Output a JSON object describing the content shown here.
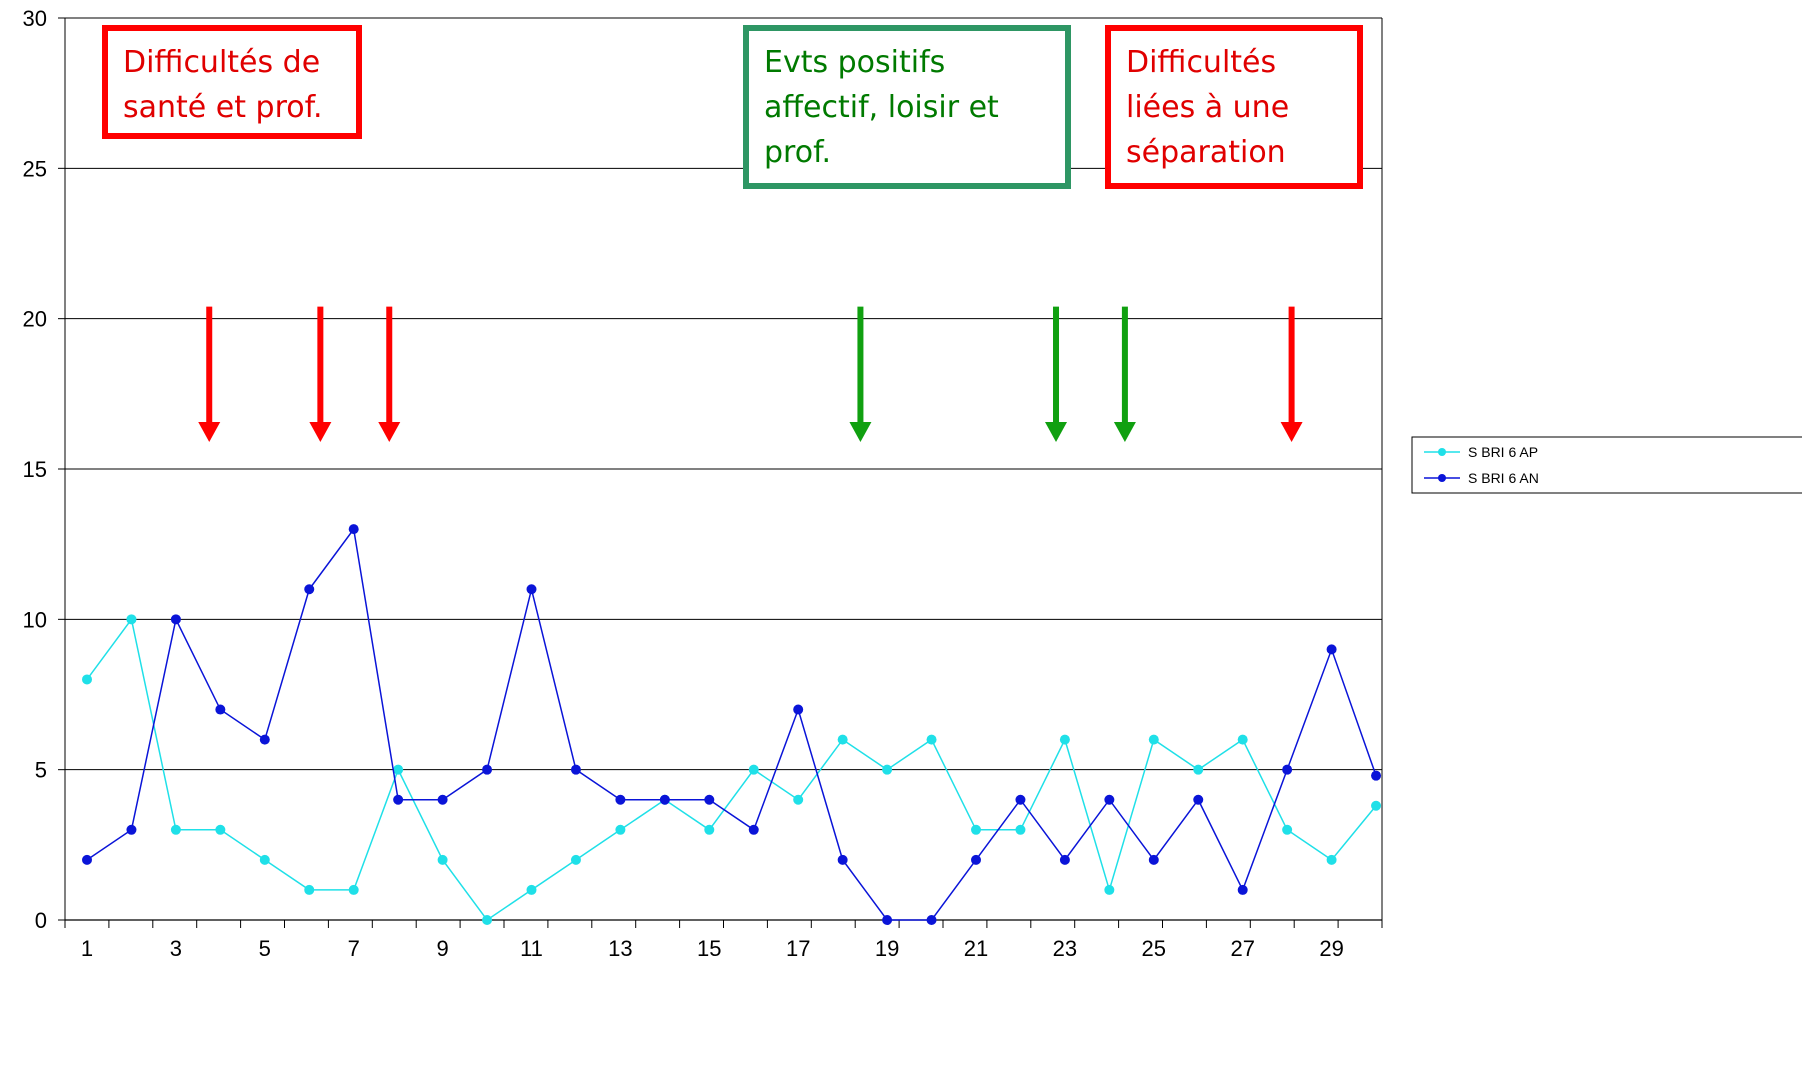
{
  "chart_data": {
    "type": "line",
    "title": "",
    "xlabel": "",
    "ylabel": "",
    "ylim": [
      0,
      30
    ],
    "yticks": [
      0,
      5,
      10,
      15,
      20,
      25,
      30
    ],
    "x": [
      1,
      2,
      3,
      4,
      5,
      6,
      7,
      8,
      9,
      10,
      11,
      12,
      13,
      14,
      15,
      16,
      17,
      18,
      19,
      20,
      21,
      22,
      23,
      24,
      25,
      26,
      27,
      28,
      29,
      30
    ],
    "xtick_labels": [
      "1",
      "3",
      "5",
      "7",
      "9",
      "11",
      "13",
      "15",
      "17",
      "19",
      "21",
      "23",
      "25",
      "27",
      "29"
    ],
    "grid": "horizontal",
    "legend_position": "right",
    "series": [
      {
        "name": "S BRI 6 AP",
        "color": "#1FE0E8",
        "values": [
          8,
          10,
          3,
          3,
          2,
          1,
          1,
          5,
          2,
          0,
          1,
          2,
          3,
          4,
          3,
          5,
          4,
          6,
          5,
          6,
          3,
          3,
          6,
          1,
          6,
          5,
          6,
          3,
          2,
          3.8
        ]
      },
      {
        "name": "S BRI 6 AN",
        "color": "#0A14D8",
        "values": [
          2,
          3,
          10,
          7,
          6,
          11,
          13,
          4,
          4,
          5,
          11,
          5,
          4,
          4,
          4,
          3,
          7,
          2,
          0,
          0,
          2,
          4,
          2,
          4,
          2,
          4,
          1,
          5,
          9,
          4.8
        ]
      }
    ],
    "annotations": [
      {
        "lines": [
          "Difficultés de",
          "santé et prof."
        ],
        "color": "#E00000",
        "border": "#FF0000",
        "kind": "negative"
      },
      {
        "lines": [
          "Evts positifs",
          "affectif, loisir et",
          "prof."
        ],
        "color": "#007A00",
        "border": "#2E9664",
        "kind": "positive"
      },
      {
        "lines": [
          "Difficultés",
          "liées à une",
          "séparation"
        ],
        "color": "#E00000",
        "border": "#FF0000",
        "kind": "negative"
      }
    ],
    "event_arrows": [
      {
        "x": 3.75,
        "color": "#FF0000"
      },
      {
        "x": 6.25,
        "color": "#FF0000"
      },
      {
        "x": 7.8,
        "color": "#FF0000"
      },
      {
        "x": 18.4,
        "color": "#10A010"
      },
      {
        "x": 22.8,
        "color": "#10A010"
      },
      {
        "x": 24.35,
        "color": "#10A010"
      },
      {
        "x": 28.1,
        "color": "#FF0000"
      }
    ]
  }
}
